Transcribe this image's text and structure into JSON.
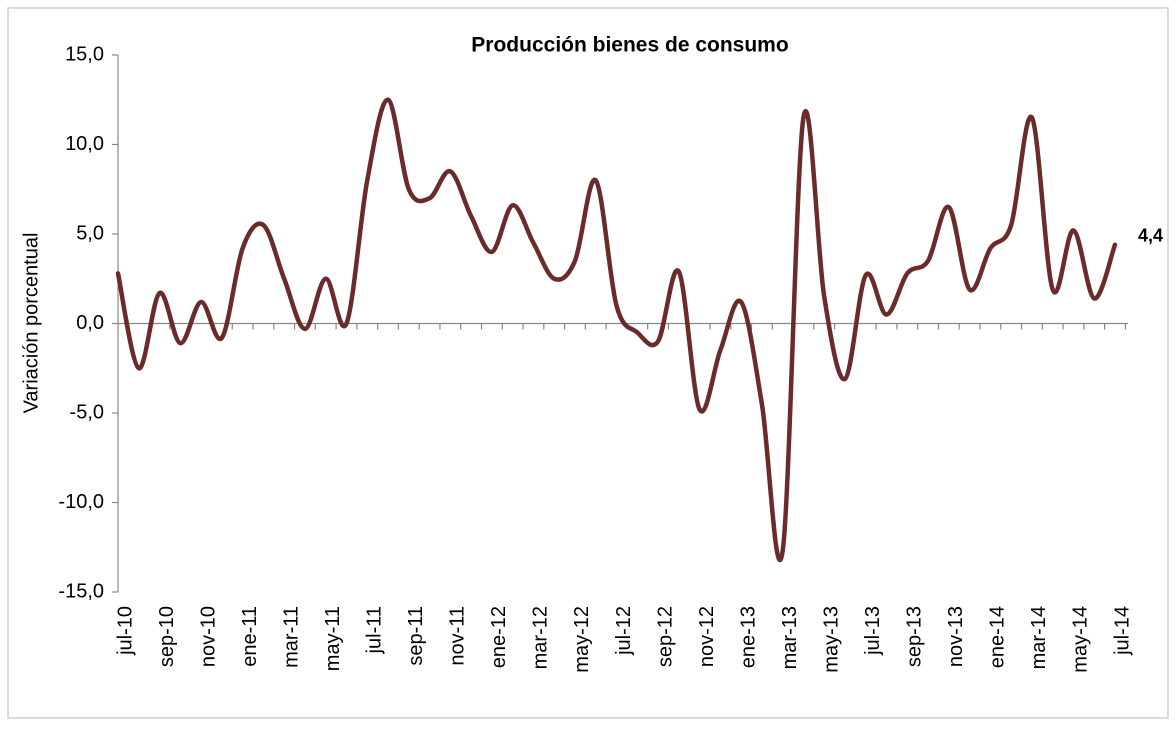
{
  "chart_data": {
    "type": "line",
    "title": "Producción bienes de consumo",
    "y_label": "Variación porcentual",
    "categories": [
      "jul-10",
      null,
      "sep-10",
      null,
      "nov-10",
      null,
      "ene-11",
      null,
      "mar-11",
      null,
      "may-11",
      null,
      "jul-11",
      null,
      "sep-11",
      null,
      "nov-11",
      null,
      "ene-12",
      null,
      "mar-12",
      null,
      "may-12",
      null,
      "jul-12",
      null,
      "sep-12",
      null,
      "nov-12",
      null,
      "ene-13",
      null,
      "mar-13",
      null,
      "may-13",
      null,
      "jul-13",
      null,
      "sep-13",
      null,
      "nov-13",
      null,
      "ene-14",
      null,
      "mar-14",
      null,
      "may-14",
      null,
      "jul-14"
    ],
    "series": [
      {
        "name": "Producción bienes de consumo",
        "color": "#6b2b2b",
        "values": [
          2.8,
          -2.5,
          1.7,
          -1.1,
          1.2,
          -0.8,
          4.2,
          5.5,
          2.5,
          -0.3,
          2.5,
          0.0,
          8.0,
          12.5,
          7.5,
          7.0,
          8.5,
          6.0,
          4.0,
          6.6,
          4.5,
          2.5,
          3.5,
          8.0,
          1.0,
          -0.5,
          -1.0,
          2.9,
          -4.8,
          -1.5,
          1.2,
          -4.5,
          -12.7,
          11.5,
          1.5,
          -3.1,
          2.7,
          0.5,
          2.8,
          3.5,
          6.5,
          1.9,
          4.2,
          5.5,
          11.5,
          1.9,
          5.2,
          1.4,
          4.4
        ],
        "value_labels": [
          null,
          null,
          null,
          null,
          null,
          null,
          null,
          null,
          null,
          null,
          null,
          null,
          null,
          null,
          null,
          null,
          null,
          null,
          null,
          null,
          null,
          null,
          null,
          null,
          null,
          null,
          null,
          null,
          null,
          null,
          null,
          null,
          null,
          null,
          null,
          null,
          null,
          null,
          null,
          null,
          null,
          null,
          null,
          null,
          null,
          null,
          null,
          null,
          "4,4"
        ]
      }
    ],
    "ylim": [
      -15,
      15
    ],
    "yticks": [
      {
        "value": -15,
        "label": "-15,0"
      },
      {
        "value": -10,
        "label": "-10,0"
      },
      {
        "value": -5,
        "label": "-5,0"
      },
      {
        "value": 0,
        "label": "0,0"
      },
      {
        "value": 5,
        "label": "5,0"
      },
      {
        "value": 10,
        "label": "10,0"
      },
      {
        "value": 15,
        "label": "15,0"
      }
    ],
    "grid": false
  }
}
